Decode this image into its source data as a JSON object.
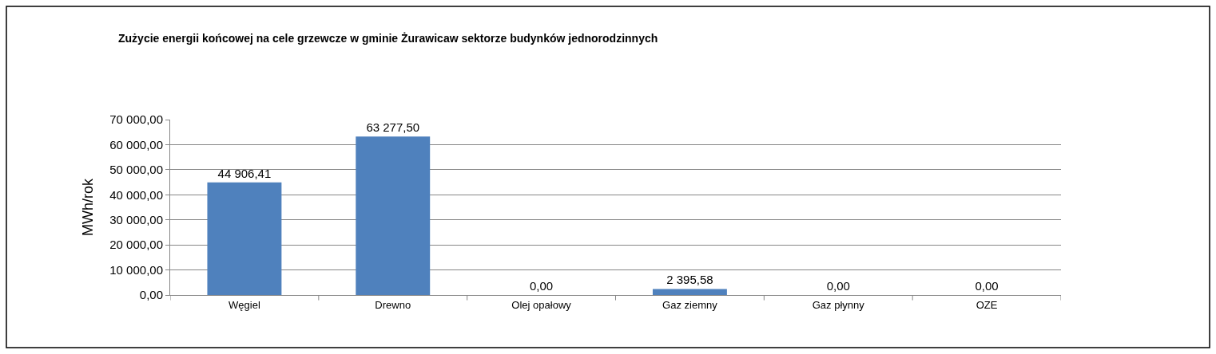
{
  "chart_data": {
    "type": "bar",
    "title": "Zużycie energii końcowej na cele grzewcze w gminie Żurawicaw sektorze budynków jednorodzinnych",
    "ylabel": "MWh/rok",
    "categories": [
      "Węgiel",
      "Drewno",
      "Olej opałowy",
      "Gaz ziemny",
      "Gaz płynny",
      "OZE"
    ],
    "values": [
      44906.41,
      63277.5,
      0,
      2395.58,
      0,
      0
    ],
    "value_labels": [
      "44 906,41",
      "63 277,50",
      "0,00",
      "2 395,58",
      "0,00",
      "0,00"
    ],
    "color": "#4f81bd",
    "ylim": [
      0,
      70000
    ],
    "yticks": [
      {
        "value": 0,
        "label": "0,00"
      },
      {
        "value": 10000,
        "label": "10 000,00"
      },
      {
        "value": 20000,
        "label": "20 000,00"
      },
      {
        "value": 30000,
        "label": "30 000,00"
      },
      {
        "value": 40000,
        "label": "40 000,00"
      },
      {
        "value": 50000,
        "label": "50 000,00"
      },
      {
        "value": 60000,
        "label": "60 000,00"
      },
      {
        "value": 70000,
        "label": "70 000,00"
      }
    ],
    "grid": "y",
    "legend": false
  }
}
